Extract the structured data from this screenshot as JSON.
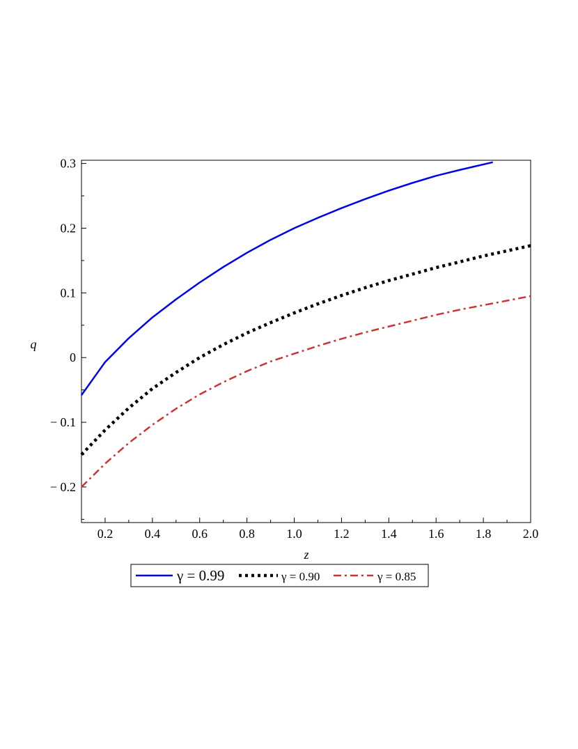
{
  "chart_data": {
    "type": "line",
    "title": "",
    "xlabel": "z",
    "ylabel": "q",
    "xlim": [
      0.1,
      2.0
    ],
    "ylim": [
      -0.255,
      0.305
    ],
    "x_ticks": [
      0.2,
      0.4,
      0.6,
      0.8,
      1.0,
      1.2,
      1.4,
      1.6,
      1.8,
      2.0
    ],
    "x_tick_labels": [
      "0.2",
      "0.4",
      "0.6",
      "0.8",
      "1.0",
      "1.2",
      "1.4",
      "1.6",
      "1.8",
      "2.0"
    ],
    "y_ticks": [
      -0.2,
      -0.1,
      0,
      0.1,
      0.2,
      0.3
    ],
    "y_tick_labels": [
      "− 0.2",
      "− 0.1",
      "0",
      "0.1",
      "0.2",
      "0.3"
    ],
    "grid": false,
    "legend_position": "bottom",
    "series": [
      {
        "name": "γ = 0.99",
        "color": "#0000ee",
        "style": "solid",
        "x": [
          0.1,
          0.2,
          0.3,
          0.4,
          0.5,
          0.6,
          0.7,
          0.8,
          0.9,
          1.0,
          1.1,
          1.2,
          1.3,
          1.4,
          1.5,
          1.6,
          1.7,
          1.84
        ],
        "y": [
          -0.058,
          -0.007,
          0.03,
          0.062,
          0.09,
          0.116,
          0.14,
          0.162,
          0.182,
          0.2,
          0.216,
          0.231,
          0.245,
          0.258,
          0.27,
          0.281,
          0.29,
          0.302
        ]
      },
      {
        "name": "γ = 0.90",
        "color": "#000000",
        "style": "dotted",
        "x": [
          0.1,
          0.2,
          0.3,
          0.4,
          0.5,
          0.6,
          0.7,
          0.8,
          0.9,
          1.0,
          1.1,
          1.2,
          1.3,
          1.4,
          1.5,
          1.6,
          1.7,
          1.8,
          1.9,
          2.0
        ],
        "y": [
          -0.15,
          -0.112,
          -0.078,
          -0.048,
          -0.023,
          0.0,
          0.02,
          0.038,
          0.054,
          0.069,
          0.083,
          0.096,
          0.108,
          0.119,
          0.129,
          0.139,
          0.148,
          0.157,
          0.165,
          0.173
        ]
      },
      {
        "name": "γ = 0.85",
        "color": "#cc3333",
        "style": "dashdot",
        "x": [
          0.1,
          0.2,
          0.3,
          0.4,
          0.5,
          0.6,
          0.7,
          0.8,
          0.9,
          1.0,
          1.1,
          1.2,
          1.3,
          1.4,
          1.5,
          1.6,
          1.7,
          1.8,
          1.9,
          2.0
        ],
        "y": [
          -0.2,
          -0.164,
          -0.132,
          -0.104,
          -0.079,
          -0.057,
          -0.038,
          -0.021,
          -0.006,
          0.006,
          0.018,
          0.029,
          0.039,
          0.048,
          0.057,
          0.066,
          0.074,
          0.081,
          0.088,
          0.095
        ]
      }
    ]
  }
}
